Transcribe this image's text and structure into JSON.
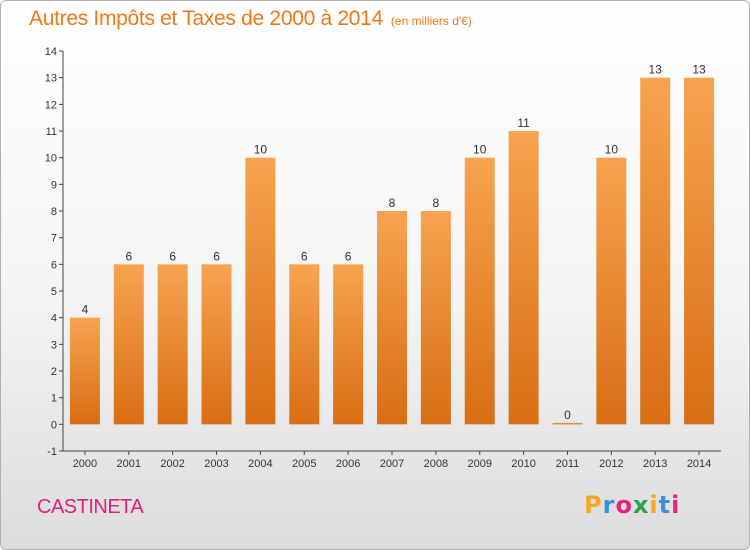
{
  "title": "Autres Impôts et Taxes de 2000 à 2014",
  "unit": "(en milliers d'€)",
  "commune": "CASTINETA",
  "logo": {
    "letters": [
      "P",
      "r",
      "o",
      "x",
      "i",
      "t",
      "i"
    ],
    "colors": [
      "#f5a623",
      "#3a8fd6",
      "#e8217a",
      "#2aa54a",
      "#f5a623",
      "#3a8fd6",
      "#e8217a"
    ]
  },
  "colors": {
    "bar_top": "#f7a350",
    "bar_bottom": "#d86e14",
    "title": "#f07818",
    "commune": "#e0207a"
  },
  "chart_data": {
    "type": "bar",
    "title": "Autres Impôts et Taxes de 2000 à 2014",
    "categories": [
      "2000",
      "2001",
      "2002",
      "2003",
      "2004",
      "2005",
      "2006",
      "2007",
      "2008",
      "2009",
      "2010",
      "2011",
      "2012",
      "2013",
      "2014"
    ],
    "values": [
      4,
      6,
      6,
      6,
      10,
      6,
      6,
      8,
      8,
      10,
      11,
      0,
      10,
      13,
      13
    ],
    "y_ticks": [
      "-1",
      "0",
      "1",
      "2",
      "3",
      "4",
      "5",
      "6",
      "7",
      "8",
      "9",
      "10",
      "11",
      "12",
      "13",
      "14"
    ],
    "ylim": [
      -1,
      14
    ],
    "grid": false,
    "legend": "none"
  }
}
